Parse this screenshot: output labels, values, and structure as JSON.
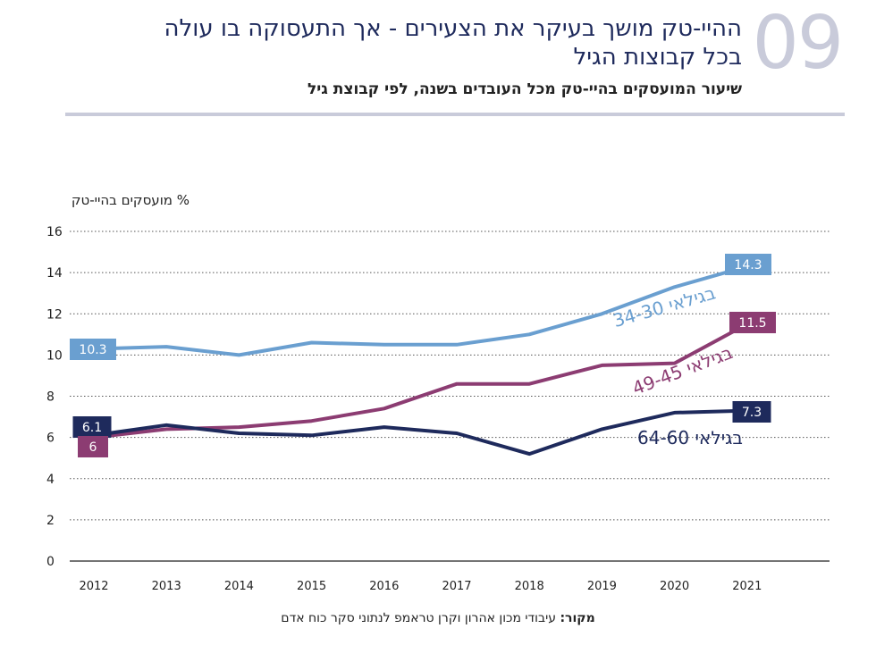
{
  "header": {
    "number": "09",
    "headline_line1": "ההיי-טק מושך בעיקר את הצעירים - אך התעסוקה בו עולה",
    "headline_line2": "בכל קבוצות הגיל",
    "subtitle": "שיעור המועסקים בהיי-טק מכל העובדים בשנה, לפי קבוצת גיל",
    "number_color": "#c9cbda",
    "rule_color": "#c9cbda"
  },
  "source": {
    "label": "מקור:",
    "text": " עיבודי מכון אהרון וקרן טראמפ לנתוני סקר כוח אדם"
  },
  "chart_data": {
    "type": "line",
    "ylabel": "% מועסקים בהיי-טק",
    "ylim": [
      0,
      16
    ],
    "yticks": [
      0,
      2,
      4,
      6,
      8,
      10,
      12,
      14,
      16
    ],
    "grid": true,
    "categories": [
      "2012",
      "2013",
      "2014",
      "2015",
      "2016",
      "2017",
      "2018",
      "2019",
      "2020",
      "2021"
    ],
    "series": [
      {
        "name": "בגילאי 34-30",
        "color": "#6a9fd0",
        "values": [
          10.3,
          10.4,
          10.0,
          10.6,
          10.5,
          10.5,
          11.0,
          12.0,
          13.3,
          14.3
        ],
        "start_label": "10.3",
        "end_label": "14.3"
      },
      {
        "name": "בגילאי 49-45",
        "color": "#8c3c72",
        "values": [
          6.0,
          6.4,
          6.5,
          6.8,
          7.4,
          8.6,
          8.6,
          9.5,
          9.6,
          11.5
        ],
        "start_label": "6",
        "end_label": "11.5"
      },
      {
        "name": "בגילאי 64-60",
        "color": "#1e2a5c",
        "values": [
          6.1,
          6.6,
          6.2,
          6.1,
          6.5,
          6.2,
          5.2,
          6.4,
          7.2,
          7.3
        ],
        "start_label": "6.1",
        "end_label": "7.3"
      }
    ]
  }
}
